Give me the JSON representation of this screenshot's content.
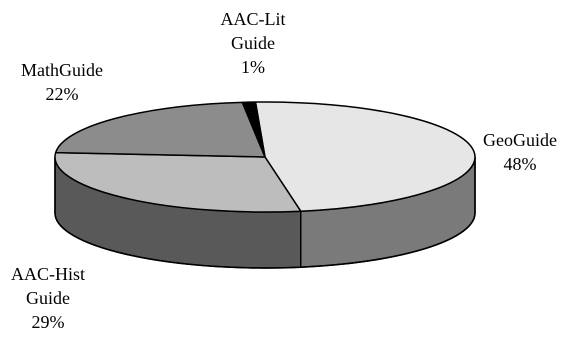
{
  "chart_data": {
    "type": "pie",
    "style": "3d",
    "title": "",
    "legend": "none",
    "slices": [
      {
        "name": "GeoGuide",
        "label_lines": [
          "GeoGuide",
          "48%"
        ],
        "value": 48,
        "top_color": "#e6e6e6",
        "side_color": "#7a7a7a"
      },
      {
        "name": "AAC-Hist Guide",
        "label_lines": [
          "AAC-Hist",
          "Guide",
          "29%"
        ],
        "value": 29,
        "top_color": "#bdbdbd",
        "side_color": "#595959"
      },
      {
        "name": "MathGuide",
        "label_lines": [
          "MathGuide",
          "22%"
        ],
        "value": 22,
        "top_color": "#8c8c8c",
        "side_color": "#4a4a4a"
      },
      {
        "name": "AAC-Lit Guide",
        "label_lines": [
          "AAC-Lit",
          "Guide",
          "1%"
        ],
        "value": 1,
        "top_color": "#000000",
        "side_color": "#000000"
      }
    ]
  }
}
